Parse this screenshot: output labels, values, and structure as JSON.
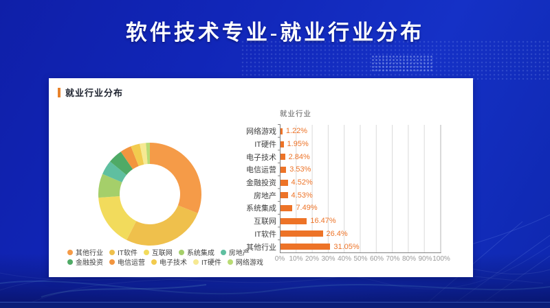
{
  "slide": {
    "title": "软件技术专业-就业行业分布"
  },
  "card": {
    "header": "就业行业分布"
  },
  "colors": {
    "background_blue": "#1126B8",
    "header_accent": "#E8832C",
    "bar_orange": "#ED7327",
    "axis_gray": "#808080",
    "grid_gray": "#D9D9D9",
    "tick_label_gray": "#999999",
    "category_label": "#404040"
  },
  "chart_data": [
    {
      "type": "pie",
      "subtype": "donut",
      "title": "",
      "labels": [
        "其他行业",
        "IT软件",
        "互联网",
        "系统集成",
        "房地产",
        "金融投资",
        "电信运营",
        "电子技术",
        "IT硬件",
        "网络游戏"
      ],
      "values": [
        31.05,
        26.4,
        16.47,
        7.49,
        4.53,
        4.52,
        3.53,
        2.84,
        1.95,
        1.22
      ],
      "colors": [
        "#F59B48",
        "#EFC04C",
        "#F2DB5C",
        "#A5CF6A",
        "#5FBFA0",
        "#4FAA66",
        "#F2953F",
        "#F2CB4E",
        "#F6E992",
        "#B9DB74"
      ],
      "legend_position": "bottom",
      "start_angle_deg": 0,
      "direction": "clockwise"
    },
    {
      "type": "bar",
      "orientation": "horizontal",
      "title": "就业行业",
      "categories": [
        "网络游戏",
        "IT硬件",
        "电子技术",
        "电信运营",
        "金融投资",
        "房地产",
        "系统集成",
        "互联网",
        "IT软件",
        "其他行业"
      ],
      "values": [
        1.22,
        1.95,
        2.84,
        3.53,
        4.52,
        4.53,
        7.49,
        16.47,
        26.4,
        31.05
      ],
      "value_labels": [
        "1.22%",
        "1.95%",
        "2.84%",
        "3.53%",
        "4.52%",
        "4.53%",
        "7.49%",
        "16.47%",
        "26.4%",
        "31.05%"
      ],
      "xlim": [
        0,
        100
      ],
      "x_ticks": [
        "0%",
        "10%",
        "20%",
        "30%",
        "40%",
        "50%",
        "60%",
        "70%",
        "80%",
        "90%",
        "100%"
      ],
      "bar_color": "#ED7327",
      "value_label_color": "#ED7327",
      "grid": true
    }
  ]
}
